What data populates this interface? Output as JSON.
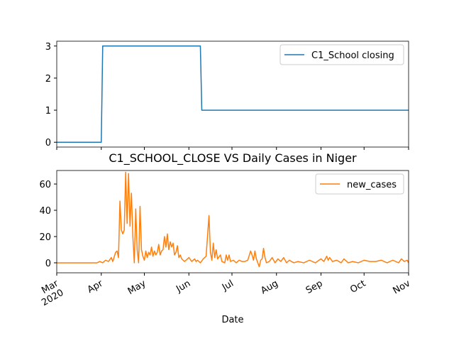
{
  "chart_data": [
    {
      "type": "line",
      "x": [
        0,
        31,
        32,
        100,
        101,
        245
      ],
      "series": [
        {
          "name": "C1_School closing",
          "color": "#1f77b4",
          "values": [
            0,
            0,
            3,
            3,
            1,
            1
          ]
        }
      ],
      "xlim": [
        0,
        245
      ],
      "ylim": [
        -0.15,
        3.15
      ],
      "yticks": [
        0,
        1,
        2,
        3
      ],
      "xticks": [
        0,
        31,
        61,
        92,
        122,
        153,
        184,
        214,
        245
      ],
      "legend": "upper right"
    },
    {
      "type": "line",
      "title": "C1_SCHOOL_CLOSE VS Daily Cases in Niger",
      "x_label": "Date",
      "x": [
        0,
        28,
        30,
        32,
        34,
        36,
        38,
        39,
        41,
        42,
        43,
        44,
        45,
        46,
        47,
        48,
        49,
        50,
        51,
        52,
        53,
        54,
        55,
        56,
        57,
        58,
        59,
        60,
        61,
        62,
        63,
        64,
        65,
        66,
        67,
        68,
        69,
        70,
        71,
        72,
        73,
        74,
        75,
        76,
        77,
        78,
        79,
        80,
        81,
        82,
        83,
        84,
        85,
        86,
        87,
        88,
        89,
        90,
        92,
        94,
        96,
        97,
        98,
        100,
        102,
        104,
        106,
        107,
        108,
        109,
        110,
        111,
        112,
        114,
        115,
        117,
        118,
        119,
        120,
        121,
        123,
        125,
        127,
        129,
        131,
        133,
        135,
        136,
        137,
        138,
        139,
        140,
        141,
        142,
        143,
        144,
        145,
        146,
        148,
        150,
        152,
        154,
        156,
        158,
        160,
        162,
        165,
        168,
        172,
        176,
        180,
        184,
        186,
        188,
        189,
        190,
        192,
        195,
        198,
        200,
        203,
        206,
        210,
        214,
        218,
        222,
        226,
        230,
        234,
        238,
        240,
        242,
        244,
        245
      ],
      "series": [
        {
          "name": "new_cases",
          "color": "#ff7f0e",
          "values": [
            0,
            0,
            1,
            0,
            2,
            1,
            4,
            1,
            8,
            9,
            4,
            47,
            25,
            22,
            25,
            69,
            30,
            68,
            28,
            53,
            20,
            0,
            41,
            10,
            0,
            43,
            10,
            5,
            2,
            9,
            4,
            8,
            6,
            12,
            5,
            9,
            6,
            8,
            14,
            6,
            9,
            10,
            20,
            12,
            22,
            10,
            16,
            12,
            15,
            6,
            8,
            13,
            4,
            6,
            3,
            2,
            1,
            2,
            4,
            1,
            3,
            1,
            2,
            0,
            3,
            5,
            36,
            8,
            2,
            15,
            4,
            10,
            3,
            6,
            1,
            0,
            6,
            2,
            6,
            1,
            2,
            0,
            2,
            1,
            1,
            2,
            9,
            6,
            2,
            9,
            3,
            0,
            -3,
            2,
            3,
            11,
            4,
            0,
            1,
            4,
            0,
            3,
            1,
            4,
            0,
            2,
            0,
            1,
            0,
            2,
            0,
            3,
            1,
            5,
            2,
            4,
            1,
            2,
            0,
            3,
            0,
            1,
            0,
            2,
            1,
            1,
            2,
            0,
            2,
            0,
            3,
            1,
            2,
            0
          ]
        }
      ],
      "xlim": [
        0,
        245
      ],
      "ylim": [
        -7.6,
        70.3
      ],
      "yticks": [
        0,
        20,
        40,
        60
      ],
      "xticks": [
        {
          "value": 0,
          "label": "Mar\n2020"
        },
        {
          "value": 31,
          "label": "Apr"
        },
        {
          "value": 61,
          "label": "May"
        },
        {
          "value": 92,
          "label": "Jun"
        },
        {
          "value": 122,
          "label": "Jul"
        },
        {
          "value": 153,
          "label": "Aug"
        },
        {
          "value": 184,
          "label": "Sep"
        },
        {
          "value": 214,
          "label": "Oct"
        },
        {
          "value": 245,
          "label": "Nov"
        }
      ],
      "legend": "upper right"
    }
  ]
}
